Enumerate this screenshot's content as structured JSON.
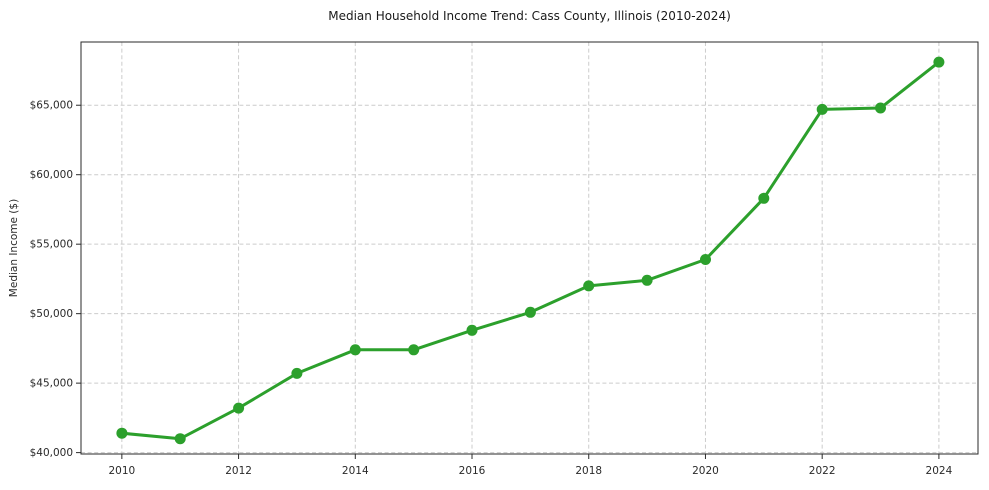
{
  "chart": {
    "title": "Median Household Income Trend: Cass County, Illinois (2010-2024)",
    "ylabel": "Median Income ($)"
  },
  "chart_data": {
    "type": "line",
    "title": "Median Household Income Trend: Cass County, Illinois (2010-2024)",
    "xlabel": "",
    "ylabel": "Median Income ($)",
    "x": [
      2010,
      2011,
      2012,
      2013,
      2014,
      2015,
      2016,
      2017,
      2018,
      2019,
      2020,
      2021,
      2022,
      2023,
      2024
    ],
    "values": [
      41400,
      41000,
      43200,
      45700,
      47400,
      47400,
      48800,
      50100,
      52000,
      52400,
      53900,
      58300,
      64700,
      64800,
      68100
    ],
    "xlim": [
      2009.3,
      2024.67
    ],
    "ylim": [
      39900,
      69550
    ],
    "xticks": {
      "values": [
        2010,
        2012,
        2014,
        2016,
        2018,
        2020,
        2022,
        2024
      ],
      "labels": [
        "2010",
        "2012",
        "2014",
        "2016",
        "2018",
        "2020",
        "2022",
        "2024"
      ]
    },
    "yticks": {
      "values": [
        40000,
        45000,
        50000,
        55000,
        60000,
        65000
      ],
      "labels": [
        "$40,000",
        "$45,000",
        "$50,000",
        "$55,000",
        "$60,000",
        "$65,000"
      ]
    },
    "grid": true,
    "grid_style": "dashed",
    "legend": "none",
    "style": {
      "line_color": "#2ca02c",
      "marker": "circle",
      "grid_color": "#cccccc",
      "axis_color": "#2a2a2a",
      "text_color": "#2a2a2a",
      "background": "#ffffff"
    }
  }
}
